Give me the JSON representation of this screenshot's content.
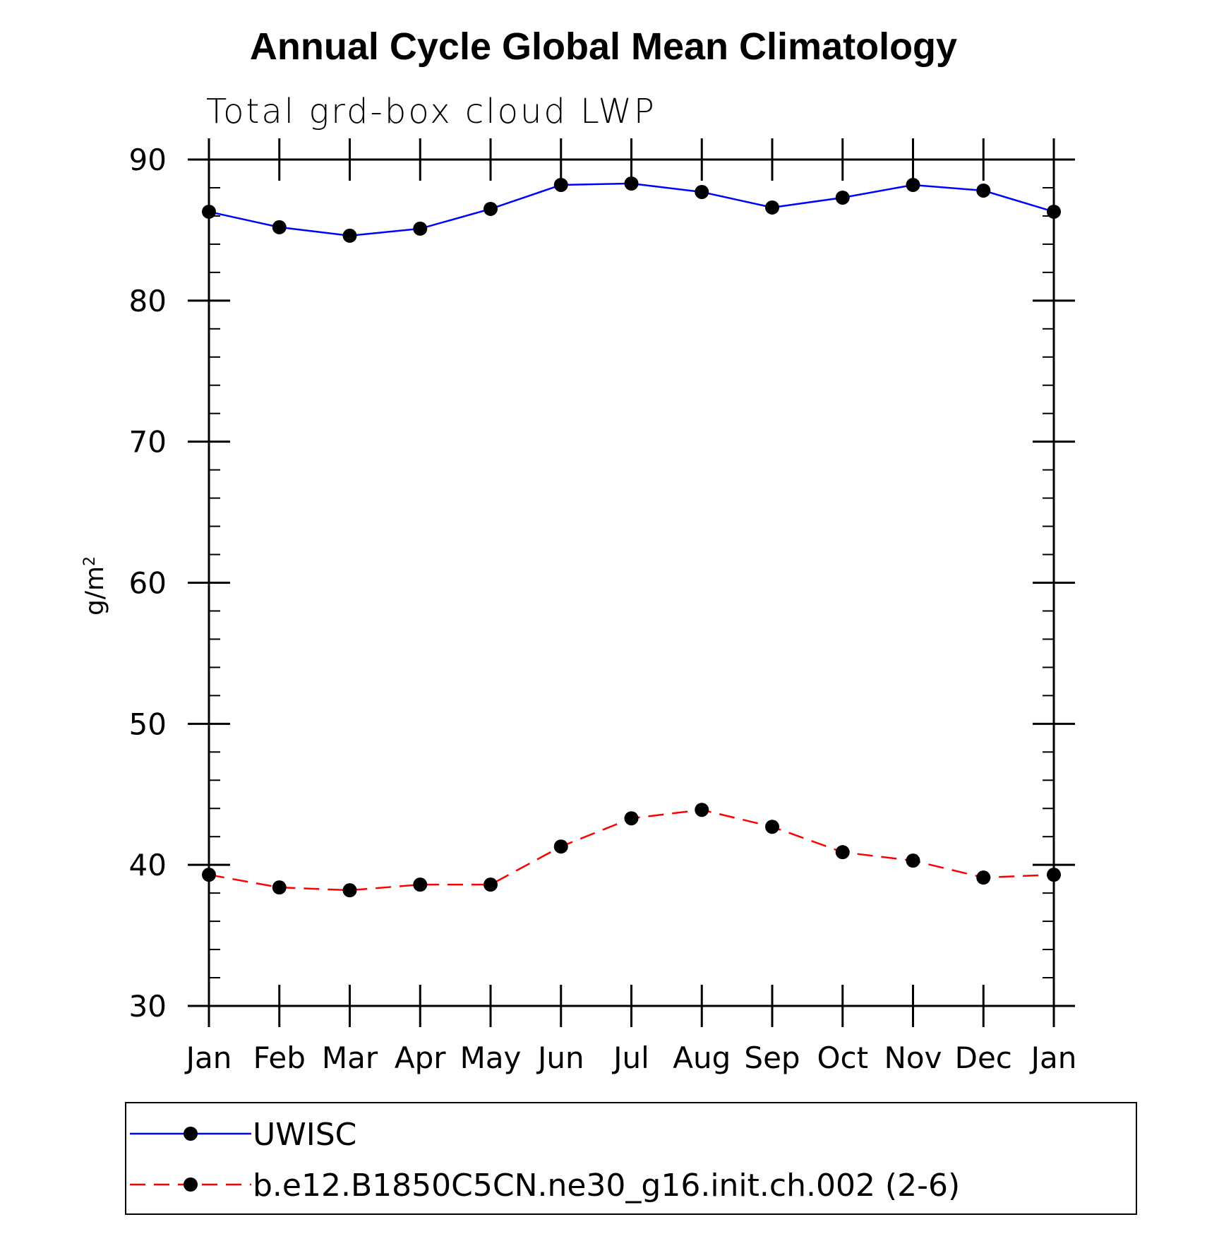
{
  "chart_data": {
    "type": "line",
    "title": "Annual Cycle Global Mean Climatology",
    "subtitle": "Total grd-box cloud LWP",
    "ylabel": "g/m",
    "ylabel_superscript": "2",
    "xlabel": "",
    "categories": [
      "Jan",
      "Feb",
      "Mar",
      "Apr",
      "May",
      "Jun",
      "Jul",
      "Aug",
      "Sep",
      "Oct",
      "Nov",
      "Dec",
      "Jan"
    ],
    "ylim": [
      30,
      90
    ],
    "yticks": [
      30,
      40,
      50,
      60,
      70,
      80,
      90
    ],
    "grid": false,
    "legend_position": "bottom",
    "series": [
      {
        "name": "UWISC",
        "color": "#0000ff",
        "dash": "solid",
        "marker": "filled-circle",
        "values": [
          86.3,
          85.2,
          84.6,
          85.1,
          86.5,
          88.2,
          88.3,
          87.7,
          86.6,
          87.3,
          88.2,
          87.8,
          86.3
        ]
      },
      {
        "name": "b.e12.B1850C5CN.ne30_g16.init.ch.002 (2-6)",
        "color": "#ff0000",
        "dash": "dashed",
        "marker": "filled-circle",
        "values": [
          39.3,
          38.4,
          38.2,
          38.6,
          38.6,
          41.3,
          43.3,
          43.9,
          42.7,
          40.9,
          40.3,
          39.1,
          39.3
        ]
      }
    ]
  }
}
